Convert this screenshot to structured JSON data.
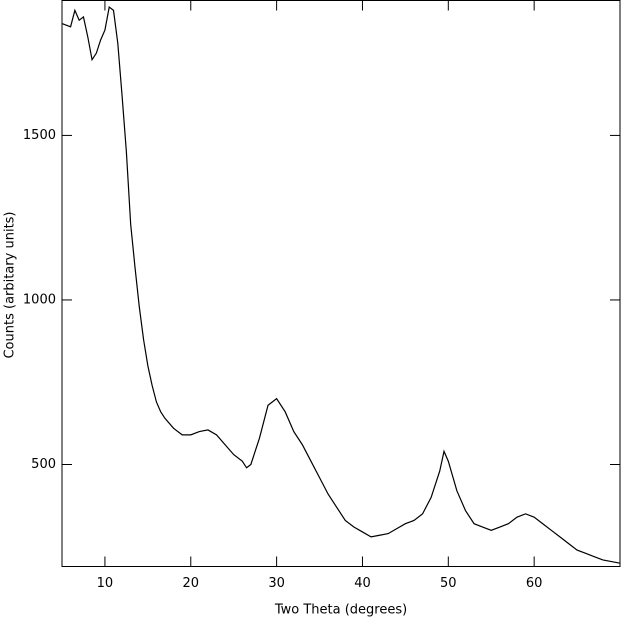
{
  "chart_data": {
    "type": "line",
    "x_label": "Two Theta (degrees)",
    "y_label": "Counts (arbitary units)",
    "xlim": [
      5,
      70
    ],
    "ylim": [
      190,
      1910
    ],
    "xticks": [
      10,
      20,
      30,
      40,
      50,
      60
    ],
    "yticks": [
      500,
      1000,
      1500
    ],
    "grid": false,
    "series": [
      {
        "color": "#000000",
        "x": [
          5,
          6,
          6.5,
          7,
          7.5,
          8,
          8.5,
          9,
          9.5,
          10,
          10.5,
          11,
          11.5,
          12,
          12.5,
          13,
          13.5,
          14,
          14.5,
          15,
          15.5,
          16,
          16.5,
          17,
          18,
          19,
          20,
          21,
          22,
          23,
          24,
          25,
          26,
          26.5,
          27,
          28,
          29,
          30,
          31,
          32,
          33,
          34,
          35,
          36,
          37,
          38,
          39,
          40,
          41,
          42,
          43,
          44,
          45,
          46,
          47,
          48,
          49,
          49.5,
          50,
          51,
          52,
          53,
          54,
          55,
          56,
          57,
          58,
          59,
          60,
          61,
          62,
          63,
          64,
          65,
          66,
          67,
          68,
          69,
          70
        ],
        "values": [
          1840,
          1830,
          1880,
          1850,
          1860,
          1800,
          1730,
          1750,
          1790,
          1820,
          1890,
          1880,
          1780,
          1620,
          1450,
          1230,
          1100,
          980,
          880,
          800,
          740,
          690,
          660,
          640,
          610,
          590,
          590,
          600,
          605,
          590,
          560,
          530,
          510,
          490,
          500,
          580,
          680,
          700,
          660,
          600,
          560,
          510,
          460,
          410,
          370,
          330,
          310,
          295,
          280,
          285,
          290,
          305,
          320,
          330,
          350,
          400,
          480,
          540,
          510,
          420,
          360,
          320,
          310,
          300,
          310,
          320,
          340,
          350,
          340,
          320,
          300,
          280,
          260,
          240,
          230,
          220,
          210,
          205,
          200
        ]
      }
    ]
  }
}
